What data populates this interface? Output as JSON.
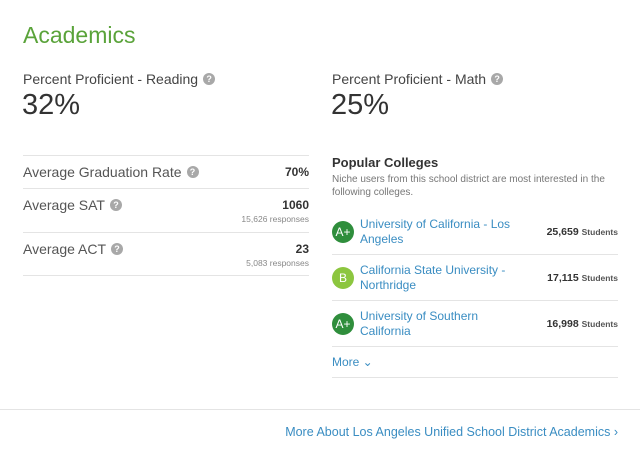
{
  "section_title": "Academics",
  "reading": {
    "label": "Percent Proficient - Reading",
    "value": "32%"
  },
  "math": {
    "label": "Percent Proficient - Math",
    "value": "25%"
  },
  "stats": {
    "grad": {
      "label": "Average Graduation Rate",
      "value": "70%"
    },
    "sat": {
      "label": "Average SAT",
      "value": "1060",
      "responses": "15,626 responses"
    },
    "act": {
      "label": "Average ACT",
      "value": "23",
      "responses": "5,083 responses"
    }
  },
  "help_icon_glyph": "?",
  "colleges": {
    "heading": "Popular Colleges",
    "description": "Niche users from this school district are most interested in the following colleges.",
    "items": [
      {
        "grade": "A+",
        "name": "University of California - Los Angeles",
        "count": "25,659",
        "unit": "Students",
        "grade_color": "#2f8e3c"
      },
      {
        "grade": "B",
        "name": "California State University - Northridge",
        "count": "17,115",
        "unit": "Students",
        "grade_color": "#8cc63f"
      },
      {
        "grade": "A+",
        "name": "University of Southern California",
        "count": "16,998",
        "unit": "Students",
        "grade_color": "#2f8e3c"
      }
    ],
    "more_label": "More ⌄"
  },
  "footer_link": "More About Los Angeles Unified School District Academics ›",
  "colors": {
    "accent_green": "#5aa33a",
    "link_blue": "#3a8dc2"
  }
}
